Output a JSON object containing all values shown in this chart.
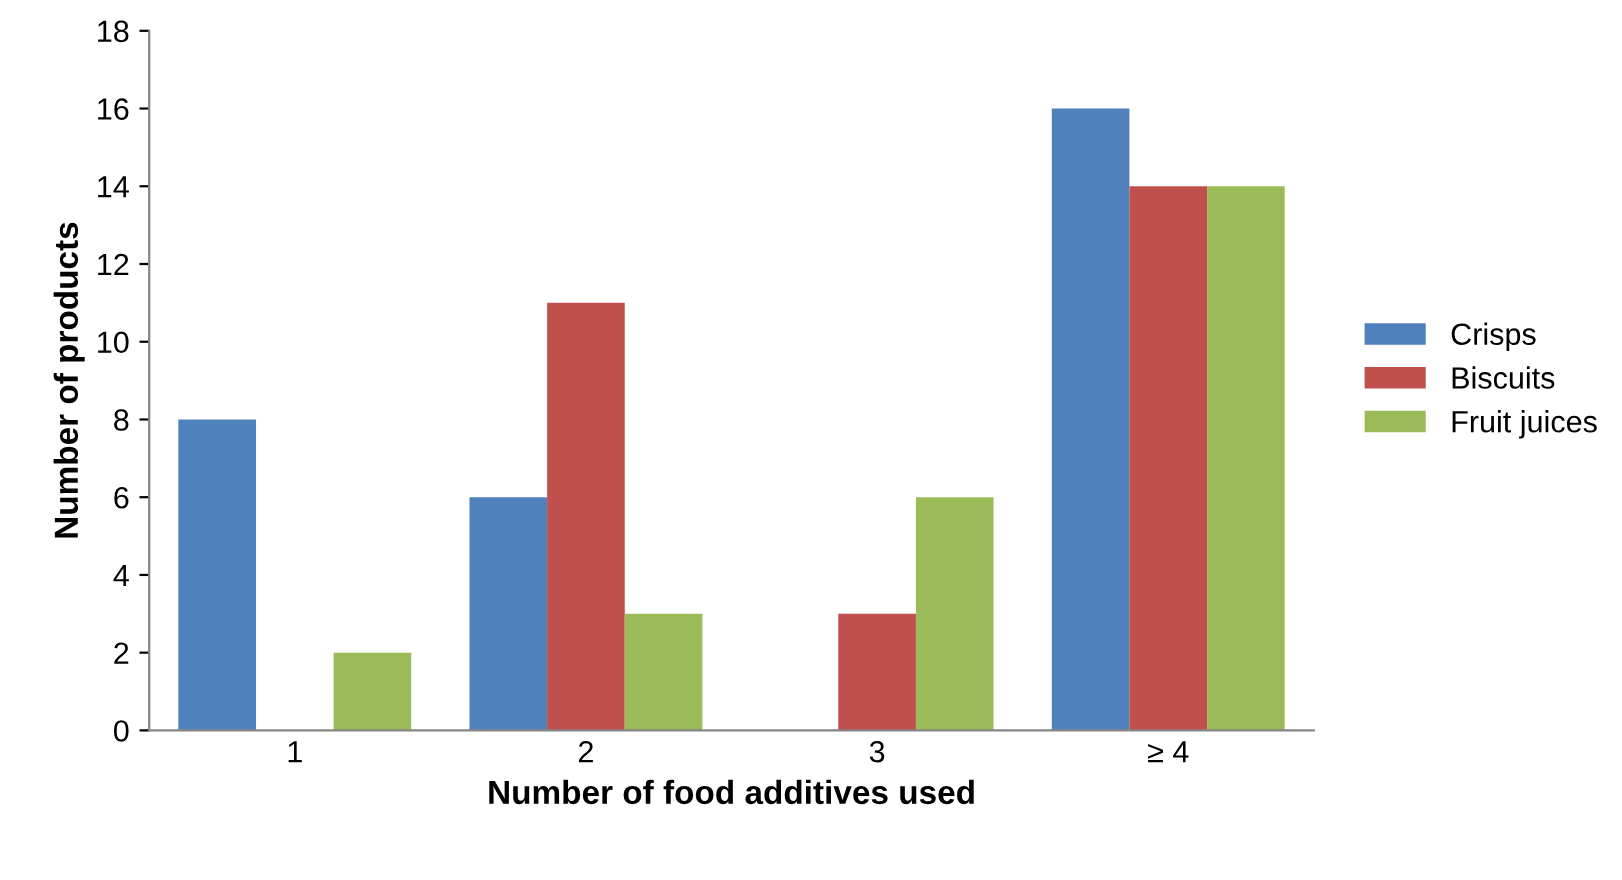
{
  "chart_data": {
    "type": "bar",
    "xlabel": "Number of food additives used",
    "ylabel": "Number of products",
    "categories": [
      "1",
      "2",
      "3",
      "≥ 4"
    ],
    "series": [
      {
        "name": "Crisps",
        "color": "#4f81bd",
        "values": [
          8,
          6,
          0,
          16
        ]
      },
      {
        "name": "Biscuits",
        "color": "#c0504d",
        "values": [
          0,
          11,
          3,
          14
        ]
      },
      {
        "name": "Fruit juices",
        "color": "#9bbb59",
        "values": [
          2,
          3,
          6,
          14
        ]
      }
    ],
    "ylim": [
      0,
      18
    ],
    "yticks": [
      0,
      2,
      4,
      6,
      8,
      10,
      12,
      14,
      16,
      18
    ],
    "grid": false,
    "legend": "right"
  }
}
